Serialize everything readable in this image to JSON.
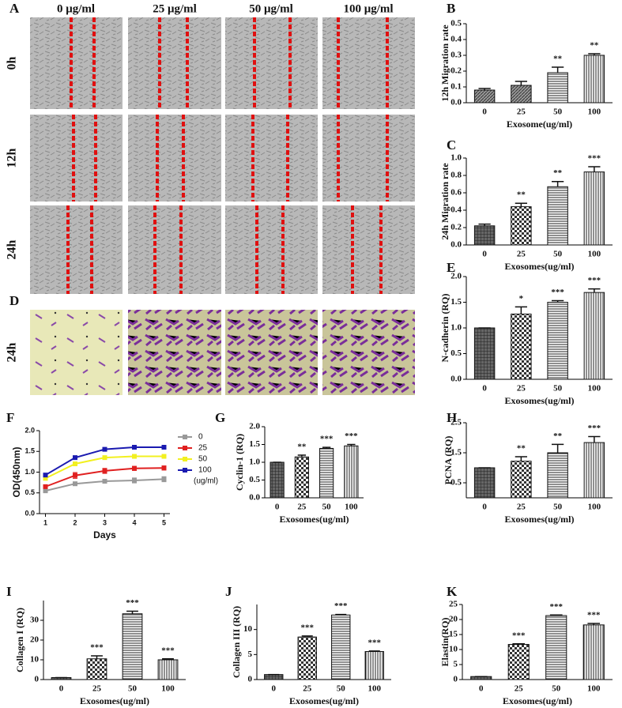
{
  "figure_a": {
    "panel": "A",
    "columns": [
      "0 μg/ml",
      "25 μg/ml",
      "50 μg/ml",
      "100 μg/ml"
    ],
    "rows": [
      "0h",
      "12h",
      "24h"
    ]
  },
  "figure_d": {
    "panel": "D",
    "row": "24h"
  },
  "chart_data": [
    {
      "type": "bar",
      "panel": "B",
      "ylabel": "12h Migration rate",
      "xlabel": "Exosome(ug/ml)",
      "categories": [
        "0",
        "25",
        "50",
        "100"
      ],
      "values": [
        0.08,
        0.11,
        0.19,
        0.3
      ],
      "errors": [
        0.01,
        0.025,
        0.035,
        0.01
      ],
      "annotations": [
        null,
        null,
        "**",
        "**"
      ],
      "patterns": [
        "diagonal",
        "diagonal",
        "horizontal",
        "vertical"
      ],
      "ylim": [
        0,
        0.5
      ],
      "yticks": [
        {
          "value": 0,
          "label": "0.0"
        },
        0.1,
        0.2,
        0.3,
        0.4,
        0.5
      ]
    },
    {
      "type": "bar",
      "panel": "C",
      "ylabel": "24h Migration rate",
      "xlabel": "Exosomes(ug/ml)",
      "categories": [
        "0",
        "25",
        "50",
        "100"
      ],
      "values": [
        0.22,
        0.44,
        0.67,
        0.84
      ],
      "errors": [
        0.02,
        0.04,
        0.06,
        0.06
      ],
      "annotations": [
        null,
        "**",
        "**",
        "***"
      ],
      "patterns": [
        "grid",
        "checker",
        "horizontal",
        "vertical"
      ],
      "ylim": [
        0,
        1.0
      ],
      "yticks": [
        {
          "value": 0,
          "label": "0.0"
        },
        0.2,
        0.4,
        0.6,
        0.8,
        {
          "value": 1,
          "label": "1.0"
        }
      ]
    },
    {
      "type": "bar",
      "panel": "E",
      "ylabel": "N-cadherin (RQ)",
      "xlabel": "Exosomes(ug/ml)",
      "categories": [
        "0",
        "25",
        "50",
        "100"
      ],
      "values": [
        1.0,
        1.27,
        1.5,
        1.69
      ],
      "errors": [
        0,
        0.14,
        0.03,
        0.07
      ],
      "annotations": [
        null,
        "*",
        "***",
        "***"
      ],
      "patterns": [
        "grid",
        "checker",
        "horizontal",
        "vertical"
      ],
      "ylim": [
        0,
        2.0
      ],
      "yticks": [
        {
          "value": 0,
          "label": "0.0"
        },
        0.5,
        {
          "value": 1,
          "label": "1.0"
        },
        1.5,
        {
          "value": 2,
          "label": "2.0"
        }
      ]
    },
    {
      "type": "line",
      "panel": "F",
      "ylabel": "OD(450nm)",
      "xlabel": "Days",
      "legend_title": "(ug/ml)",
      "x": [
        1,
        2,
        3,
        4,
        5
      ],
      "xlim": [
        0.8,
        5.2
      ],
      "xticks": [
        1,
        2,
        3,
        4,
        5
      ],
      "ylim": [
        0,
        2.0
      ],
      "yticks": [
        {
          "value": 0,
          "label": "0.0"
        },
        0.5,
        {
          "value": 1,
          "label": "1.0"
        },
        1.5,
        {
          "value": 2,
          "label": "2.0"
        }
      ],
      "series": [
        {
          "name": "0",
          "color": "#999999",
          "values": [
            0.55,
            0.72,
            0.78,
            0.8,
            0.83
          ],
          "errors": [
            0.03,
            0.03,
            0.04,
            0.06,
            0.06
          ]
        },
        {
          "name": "25",
          "color": "#e02020",
          "values": [
            0.65,
            0.92,
            1.03,
            1.09,
            1.1
          ],
          "errors": [
            0.04,
            0.07,
            0.06,
            0.05,
            0.05
          ]
        },
        {
          "name": "50",
          "color": "#f2f020",
          "values": [
            0.85,
            1.2,
            1.35,
            1.38,
            1.38
          ],
          "errors": [
            0.03,
            0.03,
            0.02,
            0.02,
            0.02
          ]
        },
        {
          "name": "100",
          "color": "#1a1ab0",
          "values": [
            0.93,
            1.35,
            1.55,
            1.6,
            1.6
          ],
          "errors": [
            0.02,
            0.02,
            0.02,
            0.02,
            0.02
          ]
        }
      ]
    },
    {
      "type": "bar",
      "panel": "G",
      "ylabel": "Cyclin-1 (RQ)",
      "xlabel": "Exosomes(ug/ml)",
      "categories": [
        "0",
        "25",
        "50",
        "100"
      ],
      "values": [
        1.0,
        1.15,
        1.39,
        1.46
      ],
      "errors": [
        0,
        0.05,
        0.03,
        0.04
      ],
      "annotations": [
        null,
        "**",
        "***",
        "***"
      ],
      "patterns": [
        "grid",
        "checker",
        "horizontal",
        "vertical"
      ],
      "ylim": [
        0,
        2.0
      ],
      "yticks": [
        {
          "value": 0,
          "label": "0.0"
        },
        0.5,
        {
          "value": 1,
          "label": "1.0"
        },
        1.5,
        {
          "value": 2,
          "label": "2.0"
        }
      ]
    },
    {
      "type": "bar",
      "panel": "H",
      "ylabel": "PCNA (RQ)",
      "xlabel": "Exosomes(ug/ml)",
      "categories": [
        "0",
        "25",
        "50",
        "100"
      ],
      "values": [
        1.0,
        1.22,
        1.5,
        1.84
      ],
      "errors": [
        0,
        0.15,
        0.28,
        0.2
      ],
      "annotations": [
        null,
        "**",
        "**",
        "***"
      ],
      "patterns": [
        "grid",
        "checker",
        "horizontal",
        "vertical"
      ],
      "ylim": [
        0,
        2.5
      ],
      "yticks": [
        0.5,
        1.5,
        2.5
      ]
    },
    {
      "type": "bar",
      "panel": "I",
      "ylabel": "Collagen I (RQ)",
      "xlabel": "Exosomes(ug/ml)",
      "categories": [
        "0",
        "25",
        "50",
        "100"
      ],
      "values": [
        1,
        10.5,
        33.3,
        10
      ],
      "errors": [
        0,
        1.5,
        1.3,
        0.5
      ],
      "annotations": [
        null,
        "***",
        "***",
        "***"
      ],
      "patterns": [
        "grid",
        "checker",
        "horizontal",
        "vertical"
      ],
      "ylim": [
        0,
        40
      ],
      "yticks": [
        0,
        10,
        20,
        30
      ]
    },
    {
      "type": "bar",
      "panel": "J",
      "ylabel": "Collagen III (RQ)",
      "xlabel": "Exosomes(ug/ml)",
      "categories": [
        "0",
        "25",
        "50",
        "100"
      ],
      "values": [
        1,
        8.5,
        12.9,
        5.6
      ],
      "errors": [
        0,
        0.2,
        0.1,
        0.1
      ],
      "annotations": [
        null,
        "***",
        "***",
        "***"
      ],
      "patterns": [
        "grid",
        "checker",
        "horizontal",
        "vertical"
      ],
      "ylim": [
        0,
        15
      ],
      "yticks": [
        0,
        5,
        10
      ]
    },
    {
      "type": "bar",
      "panel": "K",
      "ylabel": "Elastin(RQ)",
      "xlabel": "Exosomes(ug/ml)",
      "categories": [
        "0",
        "25",
        "50",
        "100"
      ],
      "values": [
        1,
        11.7,
        21.3,
        18.2
      ],
      "errors": [
        0,
        0.2,
        0.2,
        0.5
      ],
      "annotations": [
        null,
        "***",
        "***",
        "***"
      ],
      "patterns": [
        "grid",
        "checker",
        "horizontal",
        "vertical"
      ],
      "ylim": [
        0,
        25
      ],
      "yticks": [
        0,
        5,
        10,
        15,
        20,
        25
      ]
    }
  ]
}
